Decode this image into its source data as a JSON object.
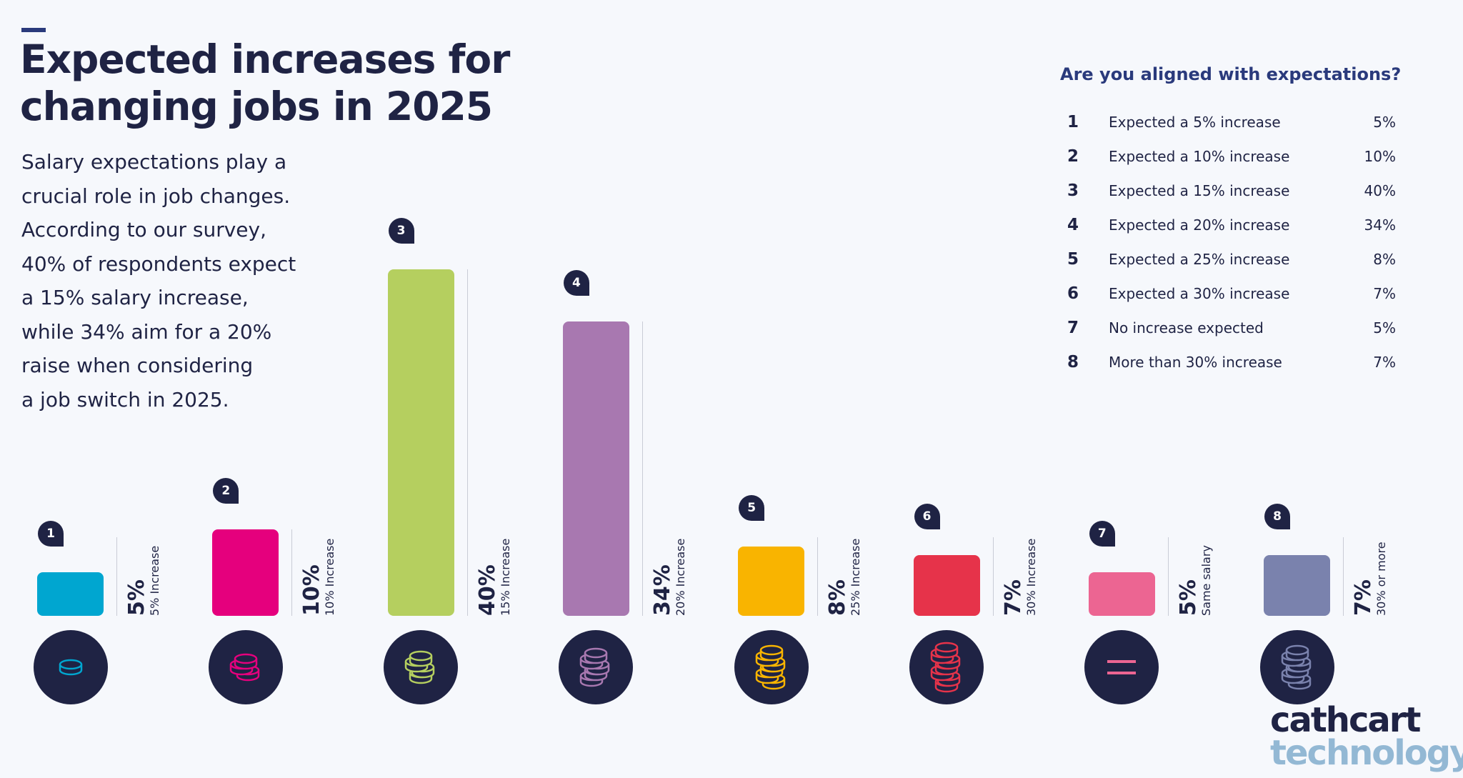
{
  "header": {
    "title_lines": [
      "Expected increases for",
      "changing jobs in 2025"
    ],
    "body_lines": [
      "Salary expectations play a",
      "crucial role in job changes.",
      "According to our survey,",
      "40% of respondents expect",
      "a 15% salary increase,",
      "while 34% aim for a 20%",
      "raise when considering",
      "a job switch in 2025."
    ]
  },
  "legend": {
    "title": "Are you aligned with expectations?",
    "rows": [
      {
        "num": "1",
        "label": "Expected a 5% increase",
        "value": "5%"
      },
      {
        "num": "2",
        "label": "Expected a 10% increase",
        "value": "10%"
      },
      {
        "num": "3",
        "label": "Expected a 15% increase",
        "value": "40%"
      },
      {
        "num": "4",
        "label": "Expected a 20% increase",
        "value": "34%"
      },
      {
        "num": "5",
        "label": "Expected a 25% increase",
        "value": "8%"
      },
      {
        "num": "6",
        "label": "Expected a 30% increase",
        "value": "7%"
      },
      {
        "num": "7",
        "label": "No increase expected",
        "value": "5%"
      },
      {
        "num": "8",
        "label": "More than 30% increase",
        "value": "7%"
      }
    ]
  },
  "chart_data": {
    "type": "bar",
    "title": "",
    "categories": [
      "1",
      "2",
      "3",
      "4",
      "5",
      "6",
      "7",
      "8"
    ],
    "values": [
      5,
      10,
      40,
      34,
      8,
      7,
      5,
      7
    ],
    "value_labels": [
      "5%",
      "10%",
      "40%",
      "34%",
      "8%",
      "7%",
      "5%",
      "7%"
    ],
    "sublabels": [
      "5% Increase",
      "10% Increase",
      "15% Increase",
      "20% Increase",
      "25% Increase",
      "30% Increase",
      "Same salary",
      "30% or more"
    ],
    "colors": [
      "#00a6d0",
      "#e5007d",
      "#b5cf5f",
      "#a878b0",
      "#f9b400",
      "#e6334a",
      "#ec6592",
      "#7a82ad"
    ],
    "icons": [
      "coin-stack-1-icon",
      "coin-stack-3-icon",
      "coin-stack-4-icon",
      "coin-stack-5-icon",
      "coin-stack-6-icon",
      "coin-stack-7-icon",
      "equals-icon",
      "coin-stack-6-icon"
    ],
    "grid": false,
    "legend": "top-right",
    "ylim": [
      0,
      40
    ]
  },
  "logo": {
    "line1": "cathcart",
    "line2": "technology"
  },
  "colors": {
    "navy": "#1f2344",
    "accent": "#2a3a7c",
    "background": "#f6f8fc"
  }
}
